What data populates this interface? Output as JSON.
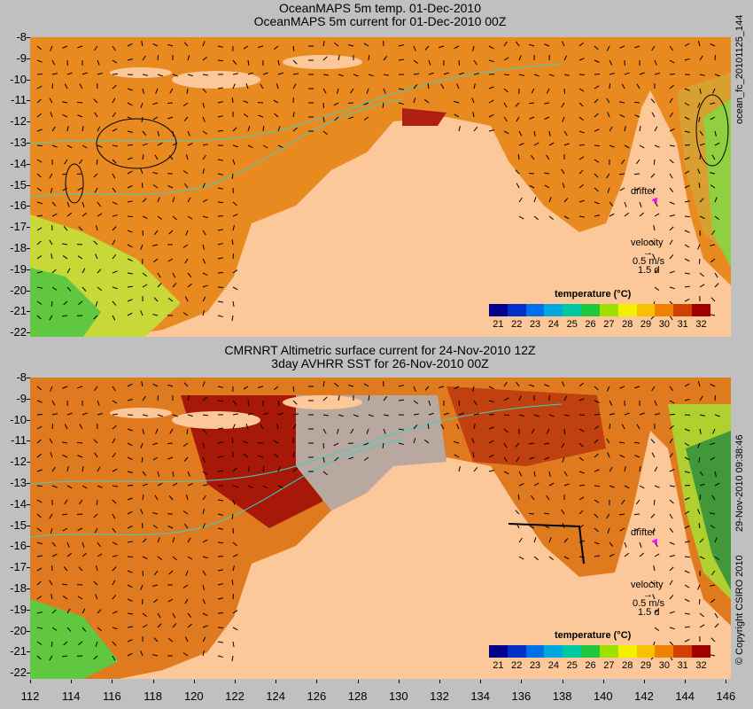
{
  "top": {
    "title1": "OceanMAPS 5m temp. 01-Dec-2010",
    "title2": "OceanMAPS 5m current for 01-Dec-2010 00Z",
    "side_label": "ocean_fc_20101125_144",
    "drifter": "drifter",
    "velocity": "velocity",
    "vel_value": "0.5 m/s",
    "vel_time": "1.5 d",
    "colorbar_title": "temperature (°C)"
  },
  "bottom": {
    "title1": "CMRNRT Altimetric surface current for 24-Nov-2010 12Z",
    "title2": "3day AVHRR SST for 26-Nov-2010 00Z",
    "side_label1": "29-Nov-2010 09:38:46",
    "side_label2": "© Copyright CSIRO 2010",
    "drifter": "drifter",
    "velocity": "velocity",
    "vel_value": "0.5 m/s",
    "vel_time": "1.5 d",
    "colorbar_title": "temperature (°C)"
  },
  "colorbar_ticks": [
    "21",
    "22",
    "23",
    "24",
    "25",
    "26",
    "27",
    "28",
    "29",
    "30",
    "31",
    "32"
  ],
  "colorbar_colors": [
    "#00008b",
    "#0030c8",
    "#0070e8",
    "#00a8e0",
    "#00c8a0",
    "#20c840",
    "#a0e000",
    "#f0f000",
    "#f8c000",
    "#f08000",
    "#d04000",
    "#a00000"
  ],
  "lat_labels": [
    "-8",
    "-9",
    "-10",
    "-11",
    "-12",
    "-13",
    "-14",
    "-15",
    "-16",
    "-17",
    "-18",
    "-19",
    "-20",
    "-21",
    "-22"
  ],
  "lon_labels": [
    "112",
    "114",
    "116",
    "118",
    "120",
    "122",
    "124",
    "126",
    "128",
    "130",
    "132",
    "134",
    "136",
    "138",
    "140",
    "142",
    "144",
    "146"
  ],
  "colors": {
    "land": "#fcc89a",
    "ocean_warm": "#e07a1e",
    "ocean_hot": "#c04010",
    "ocean_cool": "#b0d830",
    "coast_gray": "#b0a090",
    "contour": "#40d0c0"
  }
}
